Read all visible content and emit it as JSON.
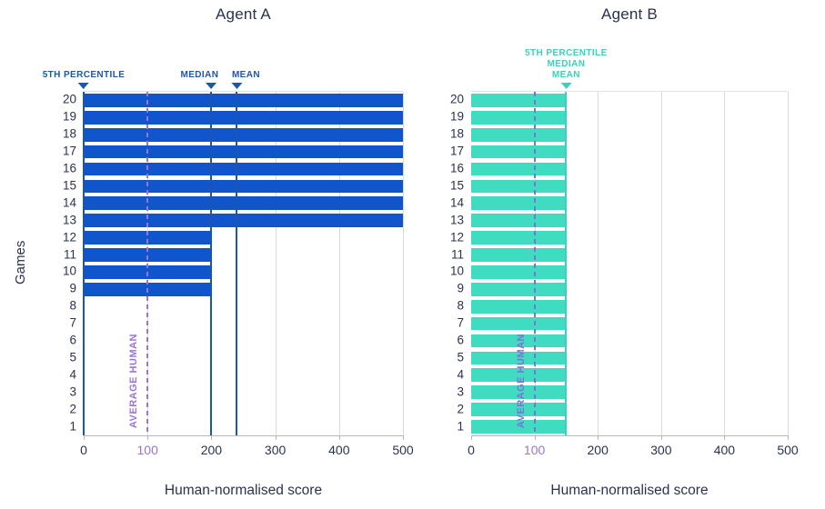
{
  "chart_data": [
    {
      "type": "bar",
      "orientation": "horizontal",
      "title": "Agent A",
      "xlabel": "Human-normalised score",
      "ylabel": "Games",
      "categories": [
        1,
        2,
        3,
        4,
        5,
        6,
        7,
        8,
        9,
        10,
        11,
        12,
        13,
        14,
        15,
        16,
        17,
        18,
        19,
        20
      ],
      "values": [
        0,
        0,
        0,
        0,
        0,
        0,
        0,
        0,
        200,
        200,
        200,
        200,
        500,
        500,
        500,
        500,
        500,
        500,
        500,
        500
      ],
      "xlim": [
        0,
        500
      ],
      "xticks": [
        "0",
        "100",
        "200",
        "300",
        "400",
        "500"
      ],
      "xtick_values": [
        0,
        100,
        200,
        300,
        400,
        500
      ],
      "gridline_values": [
        100,
        200,
        300,
        400,
        500
      ],
      "grid": true,
      "bar_color": "#1155cd",
      "annotation_color": "#1a58ae",
      "highlight_tick": {
        "value": 100,
        "color": "#9b74da"
      },
      "markers": [
        {
          "labels": [
            "5TH PERCENTILE"
          ],
          "value": 0,
          "label_offset": 0
        },
        {
          "labels": [
            "MEDIAN"
          ],
          "value": 200,
          "label_offset": -13
        },
        {
          "labels": [
            "MEAN"
          ],
          "value": 240,
          "label_offset": 10
        }
      ],
      "reference_line": {
        "label": "AVERAGE HUMAN",
        "value": 100,
        "color": "#9b74da"
      }
    },
    {
      "type": "bar",
      "orientation": "horizontal",
      "title": "Agent B",
      "xlabel": "Human-normalised score",
      "ylabel": "",
      "categories": [
        1,
        2,
        3,
        4,
        5,
        6,
        7,
        8,
        9,
        10,
        11,
        12,
        13,
        14,
        15,
        16,
        17,
        18,
        19,
        20
      ],
      "values": [
        150,
        150,
        150,
        150,
        150,
        150,
        150,
        150,
        150,
        150,
        150,
        150,
        150,
        150,
        150,
        150,
        150,
        150,
        150,
        150
      ],
      "xlim": [
        0,
        500
      ],
      "xticks": [
        "0",
        "100",
        "200",
        "300",
        "400",
        "500"
      ],
      "xtick_values": [
        0,
        100,
        200,
        300,
        400,
        500
      ],
      "gridline_values": [
        100,
        200,
        300,
        400,
        500
      ],
      "grid": true,
      "bar_color": "#3fdcc1",
      "annotation_color": "#3ed0b9",
      "highlight_tick": {
        "value": 100,
        "color": "#9b74da"
      },
      "markers": [
        {
          "labels": [
            "5TH PERCENTILE",
            "MEDIAN",
            "MEAN"
          ],
          "value": 150,
          "label_offset": 0
        }
      ],
      "reference_line": {
        "label": "AVERAGE HUMAN",
        "value": 100,
        "color": "#7b74d4"
      }
    }
  ]
}
